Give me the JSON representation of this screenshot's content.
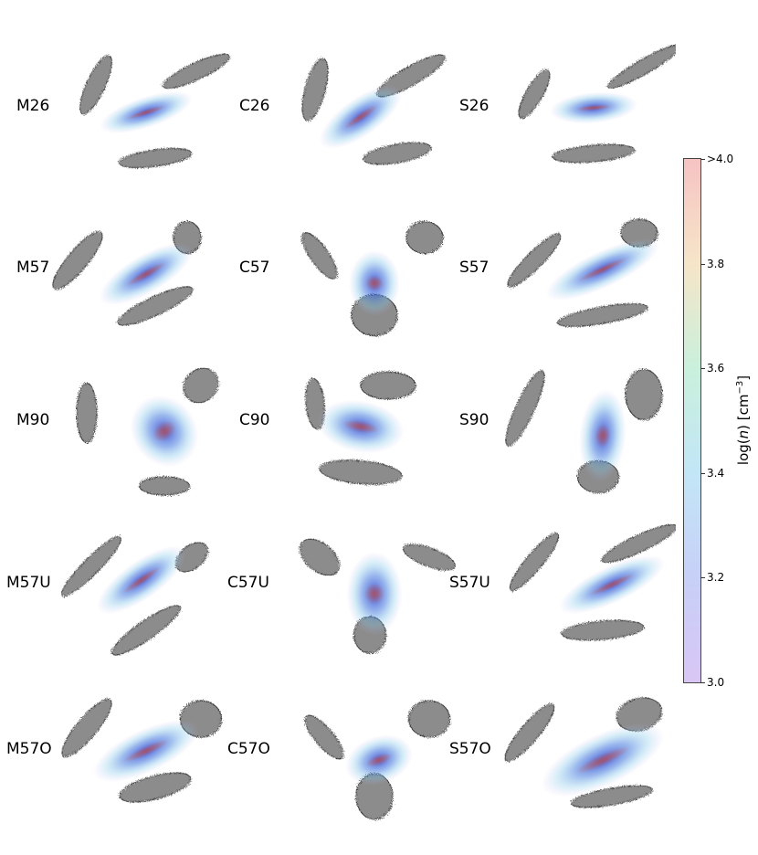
{
  "panels": [
    {
      "label": "M26"
    },
    {
      "label": "C26"
    },
    {
      "label": "S26"
    },
    {
      "label": "M57"
    },
    {
      "label": "C57"
    },
    {
      "label": "S57"
    },
    {
      "label": "M90"
    },
    {
      "label": "C90"
    },
    {
      "label": "S90"
    },
    {
      "label": "M57U"
    },
    {
      "label": "C57U"
    },
    {
      "label": "S57U"
    },
    {
      "label": "M57O"
    },
    {
      "label": "C57O"
    },
    {
      "label": "S57O"
    }
  ],
  "colorbar": {
    "title_main": "log(",
    "title_var": "n",
    "title_mid": ") [cm",
    "title_exp": "−3",
    "title_end": "]",
    "ticks": [
      ">4.0",
      "3.8",
      "3.6",
      "3.4",
      "3.2",
      "3.0"
    ],
    "colors_bottom_to_top": [
      "#d9c6f5",
      "#c7d0f7",
      "#c3e6f7",
      "#c9f0dc",
      "#f6e5c8",
      "#f6c3c3"
    ]
  }
}
